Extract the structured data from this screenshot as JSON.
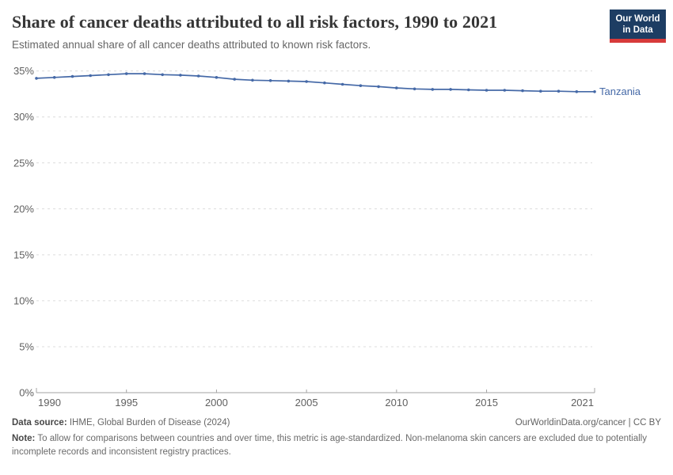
{
  "header": {
    "title": "Share of cancer deaths attributed to all risk factors, 1990 to 2021",
    "subtitle": "Estimated annual share of all cancer deaths attributed to known risk factors.",
    "logo": {
      "line1": "Our World",
      "line2": "in Data"
    }
  },
  "chart_data": {
    "type": "line",
    "title": "Share of cancer deaths attributed to all risk factors, 1990 to 2021",
    "xlabel": "",
    "ylabel": "",
    "ylim": [
      0,
      35
    ],
    "y_tick_step": 5,
    "y_tick_suffix": "%",
    "grid": true,
    "legend_position": "end-of-line-label",
    "x_ticks": [
      1990,
      1995,
      2000,
      2005,
      2010,
      2015,
      2021
    ],
    "years": [
      1990,
      1991,
      1992,
      1993,
      1994,
      1995,
      1996,
      1997,
      1998,
      1999,
      2000,
      2001,
      2002,
      2003,
      2004,
      2005,
      2006,
      2007,
      2008,
      2009,
      2010,
      2011,
      2012,
      2013,
      2014,
      2015,
      2016,
      2017,
      2018,
      2019,
      2020,
      2021
    ],
    "series": [
      {
        "name": "Tanzania",
        "color": "#4569a7",
        "values": [
          34.2,
          34.3,
          34.4,
          34.5,
          34.6,
          34.7,
          34.7,
          34.6,
          34.55,
          34.45,
          34.3,
          34.1,
          34.0,
          33.95,
          33.9,
          33.85,
          33.7,
          33.55,
          33.4,
          33.3,
          33.15,
          33.05,
          33.0,
          33.0,
          32.95,
          32.9,
          32.9,
          32.85,
          32.8,
          32.8,
          32.75,
          32.75
        ]
      }
    ],
    "axis_color": "#a3a3a3",
    "gridline_color": "#dcdcdc",
    "tick_label_color": "#606060"
  },
  "footer": {
    "data_source_label": "Data source:",
    "data_source": " IHME, Global Burden of Disease (2024)",
    "credit": "OurWorldinData.org/cancer | CC BY",
    "note_label": "Note:",
    "note": " To allow for comparisons between countries and over time, this metric is age-standardized. Non-melanoma skin cancers are excluded due to potentially incomplete records and inconsistent registry practices."
  }
}
